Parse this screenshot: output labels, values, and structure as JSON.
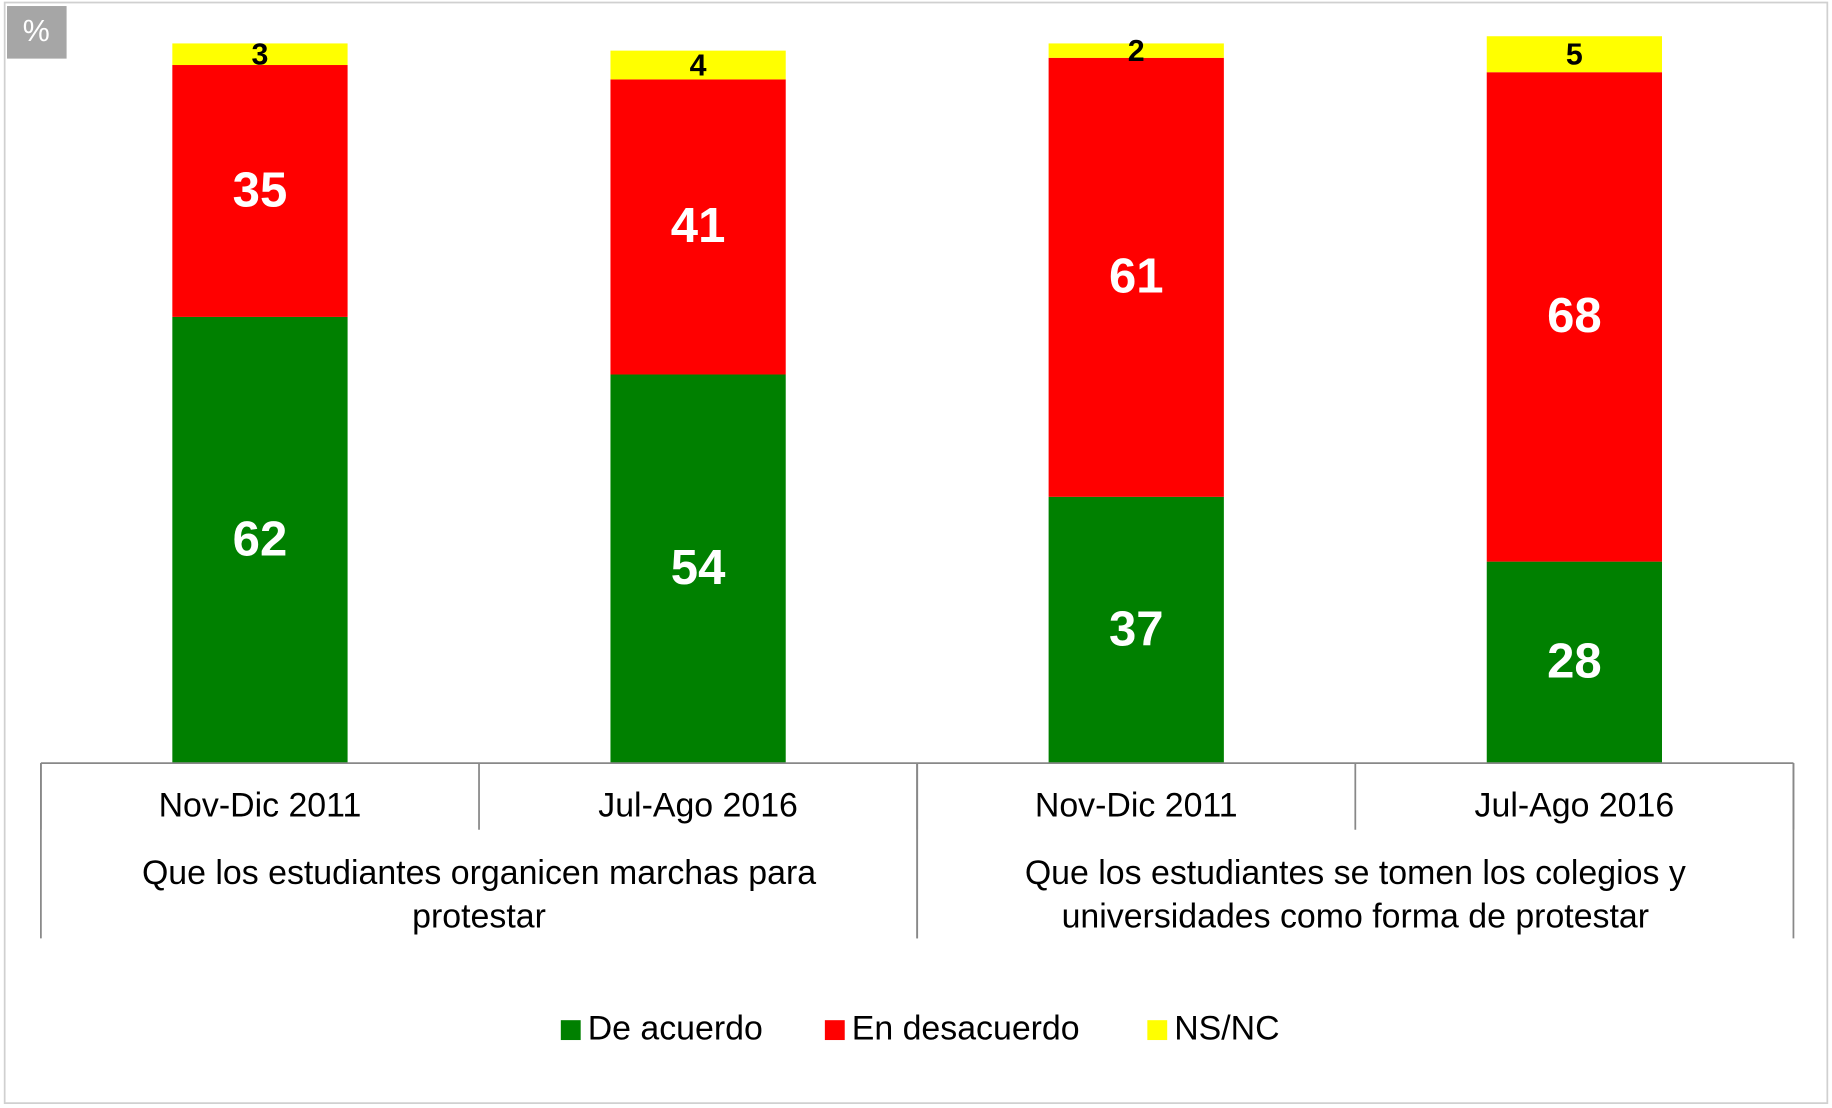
{
  "chart_data": {
    "type": "stacked_bar",
    "unit_label": "%",
    "categories": [
      "Nov-Dic 2011",
      "Jul-Ago 2016",
      "Nov-Dic 2011",
      "Jul-Ago 2016"
    ],
    "groups": [
      {
        "lines": [
          "Que los estudiantes organicen marchas para",
          "protestar"
        ],
        "span": 2
      },
      {
        "lines": [
          "Que los estudiantes se tomen los colegios y",
          "universidades como forma de protestar"
        ],
        "span": 2
      }
    ],
    "series": [
      {
        "name": "De acuerdo",
        "color": "#008000",
        "values": [
          62,
          54,
          37,
          28
        ]
      },
      {
        "name": "En desacuerdo",
        "color": "#ff0000",
        "values": [
          35,
          41,
          61,
          68
        ]
      },
      {
        "name": "NS/NC",
        "color": "#ffff00",
        "values": [
          3,
          4,
          2,
          5
        ]
      }
    ],
    "ylim": [
      0,
      100
    ]
  }
}
